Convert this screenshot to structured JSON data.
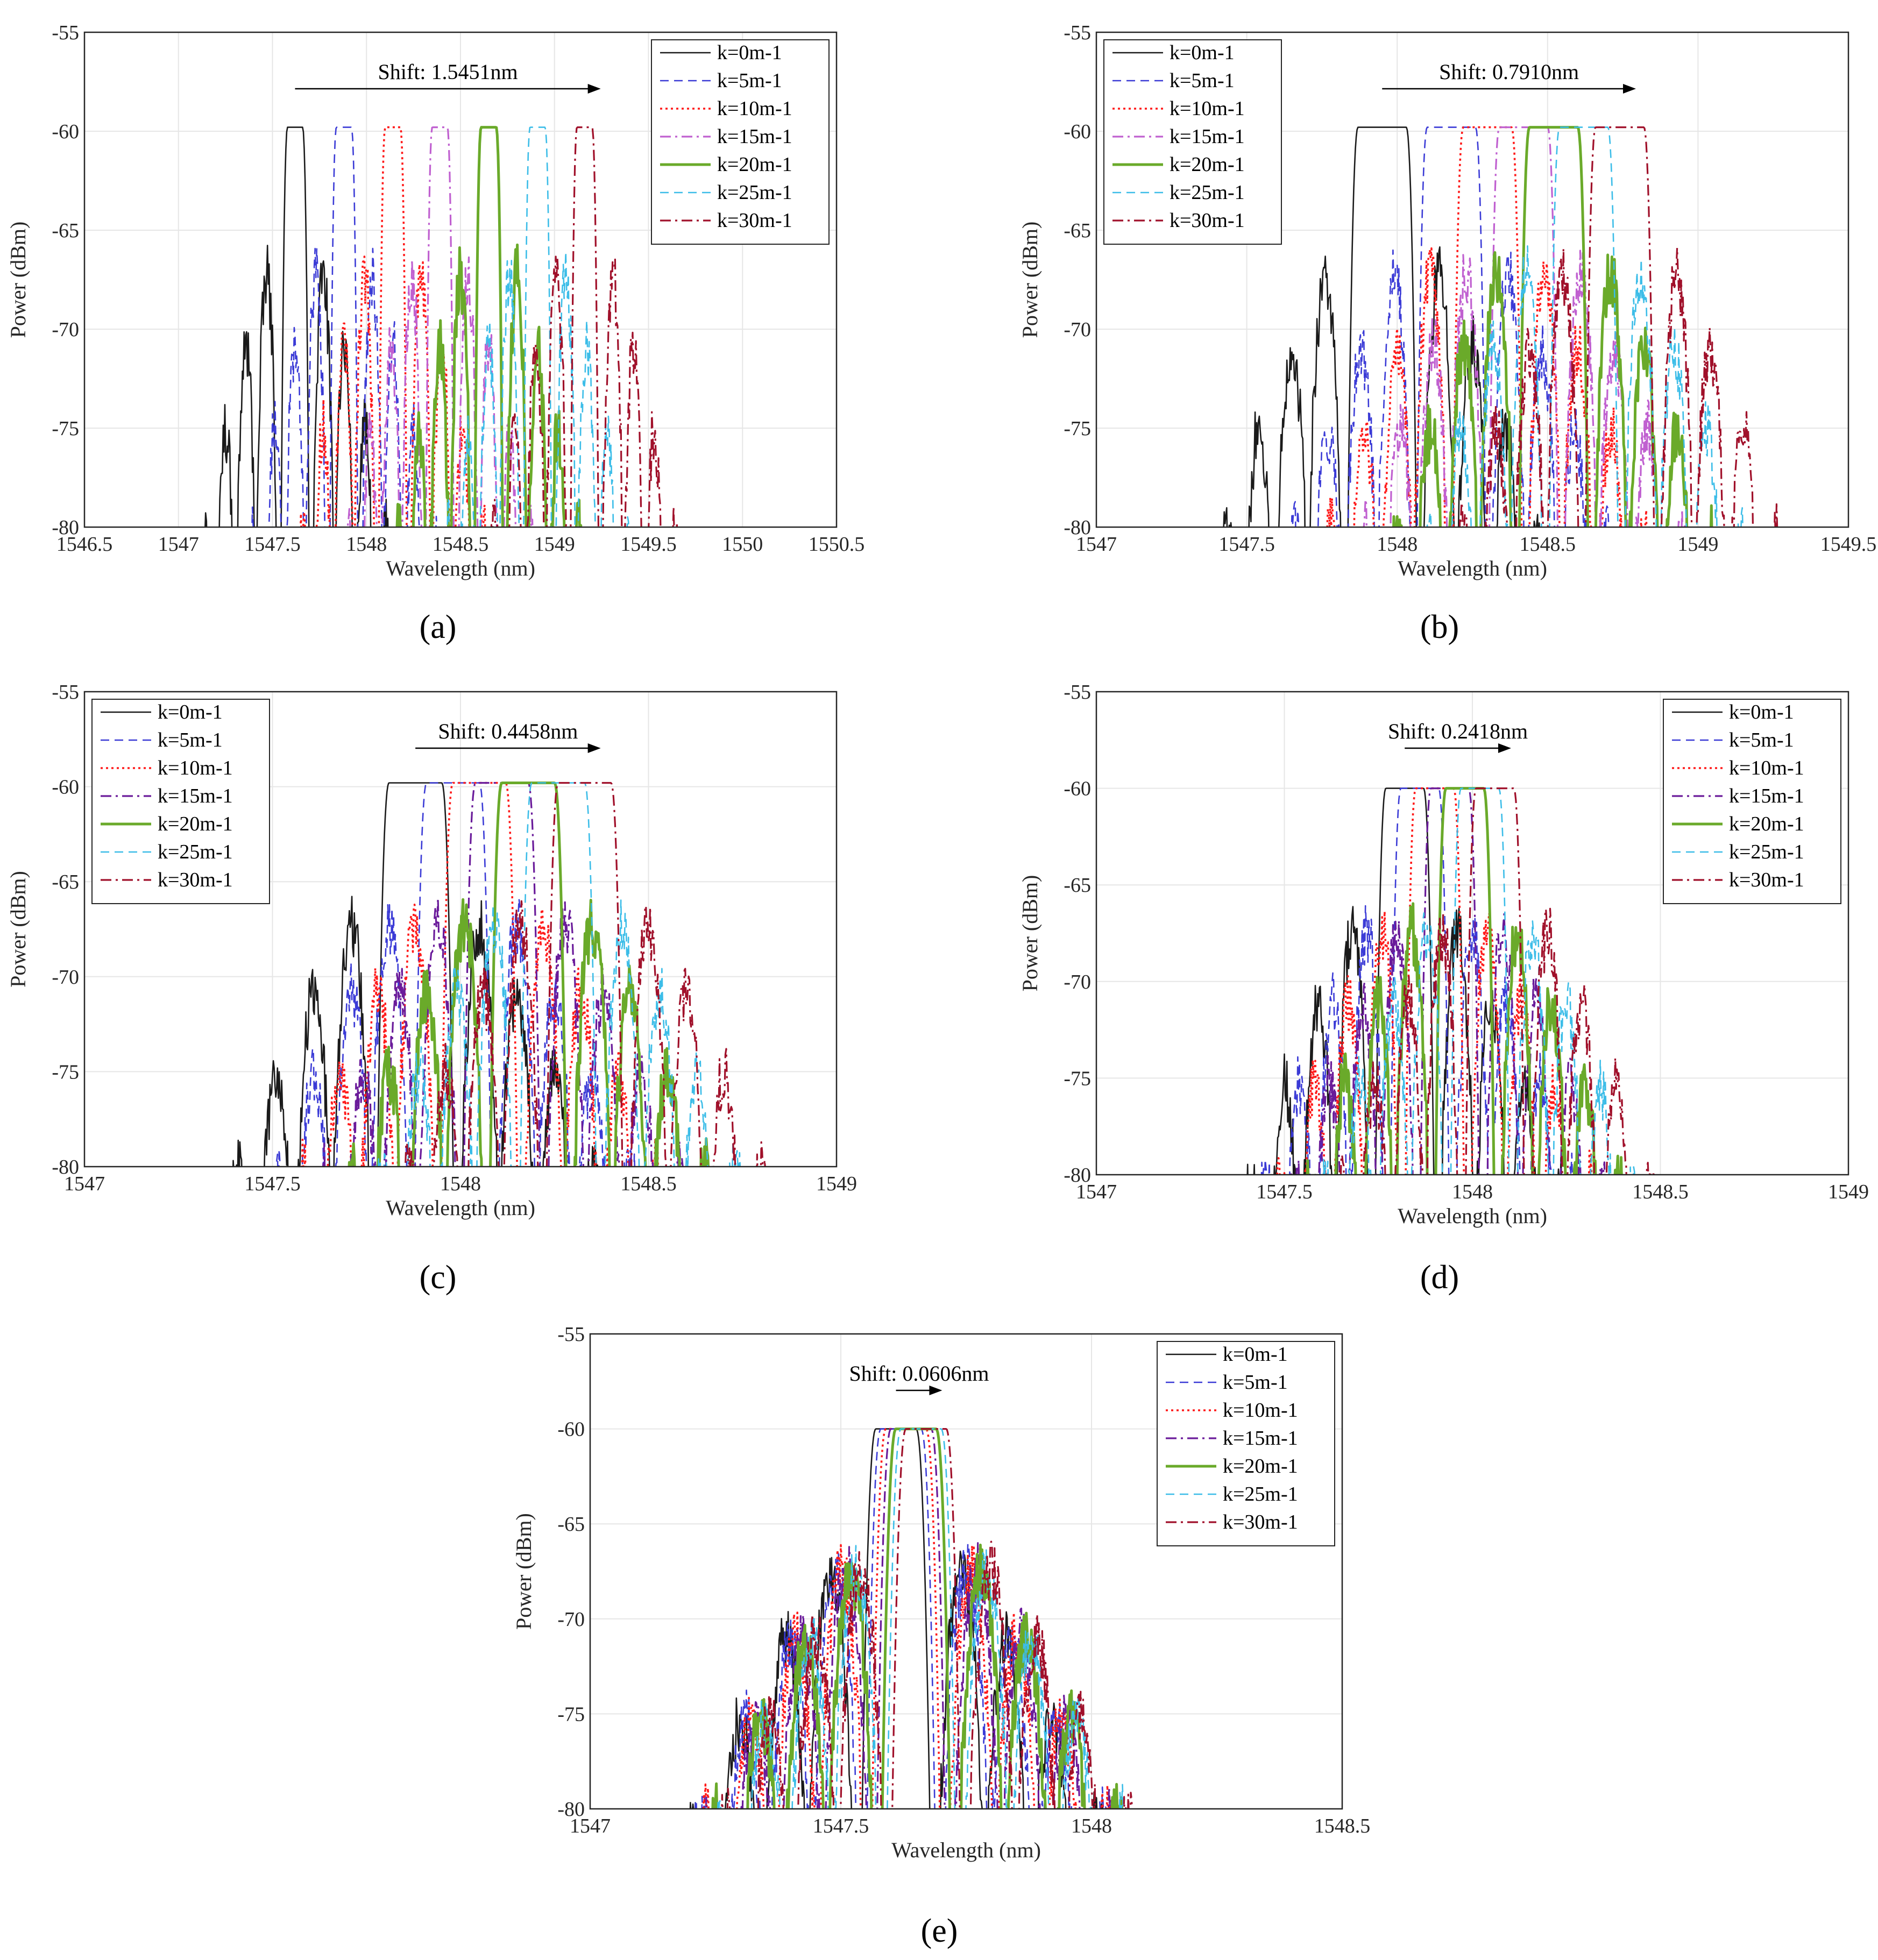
{
  "figure": {
    "legend_labels": [
      "k=0m-1",
      "k=5m-1",
      "k=10m-1",
      "k=15m-1",
      "k=20m-1",
      "k=25m-1",
      "k=30m-1"
    ],
    "colors": {
      "k0": "#1a1a1a",
      "k5": "#3b3bd6",
      "k10": "#ff1a1a",
      "k15a": "#c060d0",
      "k15b": "#6a1b9a",
      "k20": "#6aaa2a",
      "k25": "#3cbde8",
      "k30": "#a0102a",
      "grid": "#e6e6e6",
      "axis": "#262626"
    }
  },
  "chart_data": [
    {
      "id": "a",
      "type": "line",
      "panel_label": "(a)",
      "xlabel": "Wavelength (nm)",
      "ylabel": "Power (dBm)",
      "xlim": [
        1546.5,
        1550.5
      ],
      "ylim": [
        -80,
        -55
      ],
      "xticks": [
        "1546.5",
        "1547",
        "1547.5",
        "1548",
        "1548.5",
        "1549",
        "1549.5",
        "1550",
        "1550.5"
      ],
      "yticks": [
        "-55",
        "-60",
        "-65",
        "-70",
        "-75",
        "-80"
      ],
      "annotation": "Shift: 1.5451nm",
      "legend_position": "top-right",
      "series": [
        {
          "name": "k=0m-1",
          "style": "solid",
          "peak_center": 1547.62,
          "peak_power": -59.8,
          "flat_halfwidth": 0.04,
          "lobe_spacing": 0.11
        },
        {
          "name": "k=5m-1",
          "style": "dashed",
          "peak_center": 1547.88,
          "peak_power": -59.8,
          "flat_halfwidth": 0.04,
          "lobe_spacing": 0.11
        },
        {
          "name": "k=10m-1",
          "style": "dotted",
          "peak_center": 1548.14,
          "peak_power": -59.8,
          "flat_halfwidth": 0.04,
          "lobe_spacing": 0.11
        },
        {
          "name": "k=15m-1",
          "style": "dashdot",
          "peak_center": 1548.39,
          "peak_power": -59.8,
          "flat_halfwidth": 0.04,
          "lobe_spacing": 0.11
        },
        {
          "name": "k=20m-1",
          "style": "solid-thick",
          "peak_center": 1548.65,
          "peak_power": -59.8,
          "flat_halfwidth": 0.04,
          "lobe_spacing": 0.11
        },
        {
          "name": "k=25m-1",
          "style": "dashed",
          "peak_center": 1548.91,
          "peak_power": -59.8,
          "flat_halfwidth": 0.04,
          "lobe_spacing": 0.11
        },
        {
          "name": "k=30m-1",
          "style": "dashdot",
          "peak_center": 1549.16,
          "peak_power": -59.8,
          "flat_halfwidth": 0.04,
          "lobe_spacing": 0.11
        }
      ]
    },
    {
      "id": "b",
      "type": "line",
      "panel_label": "(b)",
      "xlabel": "Wavelength (nm)",
      "ylabel": "Power (dBm)",
      "xlim": [
        1547,
        1549.5
      ],
      "ylim": [
        -80,
        -55
      ],
      "xticks": [
        "1547",
        "1547.5",
        "1548",
        "1548.5",
        "1549",
        "1549.5"
      ],
      "yticks": [
        "-55",
        "-60",
        "-65",
        "-70",
        "-75",
        "-80"
      ],
      "annotation": "Shift: 0.7910nm",
      "legend_position": "top-left",
      "series": [
        {
          "name": "k=0m-1",
          "style": "solid",
          "peak_center": 1547.95,
          "peak_power": -59.8,
          "flat_halfwidth": 0.08,
          "lobe_spacing": 0.11
        },
        {
          "name": "k=5m-1",
          "style": "dashed",
          "peak_center": 1548.18,
          "peak_power": -59.8,
          "flat_halfwidth": 0.08,
          "lobe_spacing": 0.11
        },
        {
          "name": "k=10m-1",
          "style": "dotted",
          "peak_center": 1548.3,
          "peak_power": -59.8,
          "flat_halfwidth": 0.08,
          "lobe_spacing": 0.11
        },
        {
          "name": "k=15m-1",
          "style": "dashdot",
          "peak_center": 1548.42,
          "peak_power": -59.8,
          "flat_halfwidth": 0.08,
          "lobe_spacing": 0.11
        },
        {
          "name": "k=20m-1",
          "style": "solid-thick",
          "peak_center": 1548.52,
          "peak_power": -59.8,
          "flat_halfwidth": 0.08,
          "lobe_spacing": 0.11
        },
        {
          "name": "k=25m-1",
          "style": "dashed",
          "peak_center": 1548.62,
          "peak_power": -59.8,
          "flat_halfwidth": 0.08,
          "lobe_spacing": 0.11
        },
        {
          "name": "k=30m-1",
          "style": "dashdot",
          "peak_center": 1548.74,
          "peak_power": -59.8,
          "flat_halfwidth": 0.08,
          "lobe_spacing": 0.11
        }
      ]
    },
    {
      "id": "c",
      "type": "line",
      "panel_label": "(c)",
      "xlabel": "Wavelength (nm)",
      "ylabel": "Power (dBm)",
      "xlim": [
        1547,
        1549
      ],
      "ylim": [
        -80,
        -55
      ],
      "xticks": [
        "1547",
        "1547.5",
        "1548",
        "1548.5",
        "1549"
      ],
      "yticks": [
        "-55",
        "-60",
        "-65",
        "-70",
        "-75",
        "-80"
      ],
      "annotation": "Shift: 0.4458nm",
      "legend_position": "top-left",
      "series": [
        {
          "name": "k=0m-1",
          "style": "solid",
          "peak_center": 1547.88,
          "peak_power": -59.8,
          "flat_halfwidth": 0.07,
          "lobe_spacing": 0.1
        },
        {
          "name": "k=5m-1",
          "style": "dashed",
          "peak_center": 1547.98,
          "peak_power": -59.8,
          "flat_halfwidth": 0.07,
          "lobe_spacing": 0.1
        },
        {
          "name": "k=10m-1",
          "style": "dotted",
          "peak_center": 1548.05,
          "peak_power": -59.8,
          "flat_halfwidth": 0.07,
          "lobe_spacing": 0.1
        },
        {
          "name": "k=15m-1",
          "style": "dashdot",
          "peak_center": 1548.11,
          "peak_power": -59.8,
          "flat_halfwidth": 0.07,
          "lobe_spacing": 0.1
        },
        {
          "name": "k=20m-1",
          "style": "solid-thick",
          "peak_center": 1548.18,
          "peak_power": -59.8,
          "flat_halfwidth": 0.07,
          "lobe_spacing": 0.1
        },
        {
          "name": "k=25m-1",
          "style": "dashed",
          "peak_center": 1548.26,
          "peak_power": -59.8,
          "flat_halfwidth": 0.07,
          "lobe_spacing": 0.1
        },
        {
          "name": "k=30m-1",
          "style": "dashdot",
          "peak_center": 1548.33,
          "peak_power": -59.8,
          "flat_halfwidth": 0.07,
          "lobe_spacing": 0.1
        }
      ]
    },
    {
      "id": "d",
      "type": "line",
      "panel_label": "(d)",
      "xlabel": "Wavelength (nm)",
      "ylabel": "Power (dBm)",
      "xlim": [
        1547,
        1549
      ],
      "ylim": [
        -80,
        -55
      ],
      "xticks": [
        "1547",
        "1547.5",
        "1548",
        "1548.5",
        "1549"
      ],
      "yticks": [
        "-55",
        "-60",
        "-65",
        "-70",
        "-75",
        "-80"
      ],
      "annotation": "Shift: 0.2418nm",
      "legend_position": "top-right",
      "series": [
        {
          "name": "k=0m-1",
          "style": "solid",
          "peak_center": 1547.82,
          "peak_power": -60.0,
          "flat_halfwidth": 0.05,
          "lobe_spacing": 0.09
        },
        {
          "name": "k=5m-1",
          "style": "dashed",
          "peak_center": 1547.86,
          "peak_power": -60.0,
          "flat_halfwidth": 0.05,
          "lobe_spacing": 0.09
        },
        {
          "name": "k=10m-1",
          "style": "dotted",
          "peak_center": 1547.9,
          "peak_power": -60.0,
          "flat_halfwidth": 0.05,
          "lobe_spacing": 0.09
        },
        {
          "name": "k=15m-1",
          "style": "dashdot",
          "peak_center": 1547.94,
          "peak_power": -60.0,
          "flat_halfwidth": 0.05,
          "lobe_spacing": 0.09
        },
        {
          "name": "k=20m-1",
          "style": "solid-thick",
          "peak_center": 1547.98,
          "peak_power": -60.0,
          "flat_halfwidth": 0.05,
          "lobe_spacing": 0.09
        },
        {
          "name": "k=25m-1",
          "style": "dashed",
          "peak_center": 1548.02,
          "peak_power": -60.0,
          "flat_halfwidth": 0.05,
          "lobe_spacing": 0.09
        },
        {
          "name": "k=30m-1",
          "style": "dashdot",
          "peak_center": 1548.06,
          "peak_power": -60.0,
          "flat_halfwidth": 0.05,
          "lobe_spacing": 0.09
        }
      ]
    },
    {
      "id": "e",
      "type": "line",
      "panel_label": "(e)",
      "xlabel": "Wavelength (nm)",
      "ylabel": "Power (dBm)",
      "xlim": [
        1547,
        1548.5
      ],
      "ylim": [
        -80,
        -55
      ],
      "xticks": [
        "1547",
        "1547.5",
        "1548",
        "1548.5"
      ],
      "yticks": [
        "-55",
        "-60",
        "-65",
        "-70",
        "-75",
        "-80"
      ],
      "annotation": "Shift: 0.0606nm",
      "legend_position": "top-right",
      "series": [
        {
          "name": "k=0m-1",
          "style": "solid",
          "peak_center": 1547.61,
          "peak_power": -60.0,
          "flat_halfwidth": 0.04,
          "lobe_spacing": 0.09
        },
        {
          "name": "k=5m-1",
          "style": "dashed",
          "peak_center": 1547.62,
          "peak_power": -60.0,
          "flat_halfwidth": 0.04,
          "lobe_spacing": 0.09
        },
        {
          "name": "k=10m-1",
          "style": "dotted",
          "peak_center": 1547.63,
          "peak_power": -60.0,
          "flat_halfwidth": 0.04,
          "lobe_spacing": 0.09
        },
        {
          "name": "k=15m-1",
          "style": "dashdot",
          "peak_center": 1547.64,
          "peak_power": -60.0,
          "flat_halfwidth": 0.04,
          "lobe_spacing": 0.09
        },
        {
          "name": "k=20m-1",
          "style": "solid-thick",
          "peak_center": 1547.65,
          "peak_power": -60.0,
          "flat_halfwidth": 0.04,
          "lobe_spacing": 0.09
        },
        {
          "name": "k=25m-1",
          "style": "dashed",
          "peak_center": 1547.66,
          "peak_power": -60.0,
          "flat_halfwidth": 0.04,
          "lobe_spacing": 0.09
        },
        {
          "name": "k=30m-1",
          "style": "dashdot",
          "peak_center": 1547.67,
          "peak_power": -60.0,
          "flat_halfwidth": 0.04,
          "lobe_spacing": 0.09
        }
      ]
    }
  ]
}
